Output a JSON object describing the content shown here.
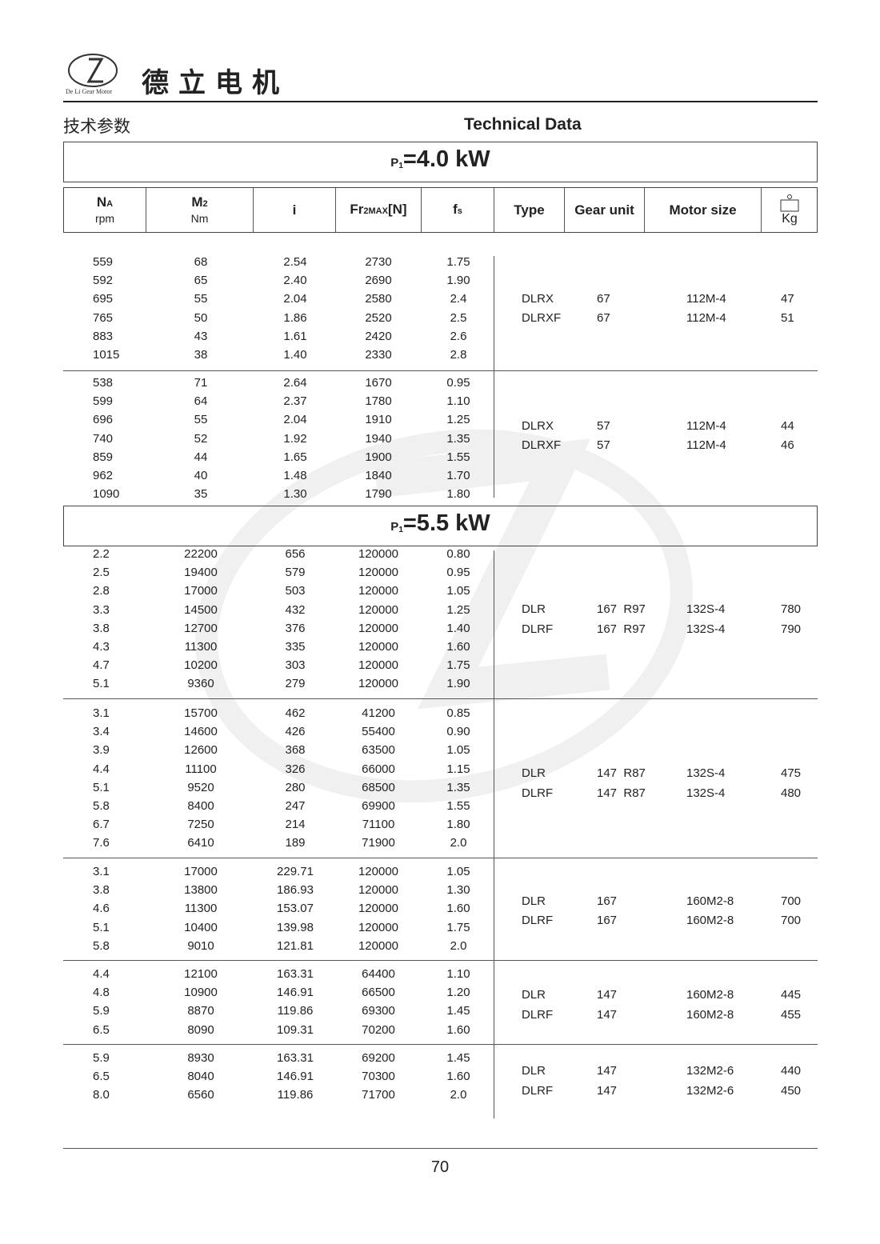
{
  "brand": {
    "name_cn": "德立电机",
    "logo_text": "De Li Gear Motor",
    "logo_chars": "德立"
  },
  "heading": {
    "left": "技术参数",
    "right": "Technical Data"
  },
  "columns": {
    "na": "N",
    "na_sub": "A",
    "na_unit": "rpm",
    "m2": "M",
    "m2_sub": "2",
    "m2_unit": "Nm",
    "i": "i",
    "fr": "Fr",
    "fr_sub": "2MAX",
    "fr_suffix": "[N]",
    "fs": "f",
    "fs_sub": "s",
    "type": "Type",
    "gear_unit": "Gear unit",
    "motor_size": "Motor size",
    "kg": "Kg",
    "kg_icon": "weight-icon"
  },
  "sections": [
    {
      "p_label": "P",
      "p_sub": "1",
      "p_value": "=4.0 kW"
    },
    {
      "p_label": "P",
      "p_sub": "1",
      "p_value": "=5.5 kW"
    }
  ],
  "groups": [
    {
      "rows": [
        [
          "559",
          "68",
          "2.54",
          "2730",
          "1.75"
        ],
        [
          "592",
          "65",
          "2.40",
          "2690",
          "1.90"
        ],
        [
          "695",
          "55",
          "2.04",
          "2580",
          "2.4"
        ],
        [
          "765",
          "50",
          "1.86",
          "2520",
          "2.5"
        ],
        [
          "883",
          "43",
          "1.61",
          "2420",
          "2.6"
        ],
        [
          "1015",
          "38",
          "1.40",
          "2330",
          "2.8"
        ]
      ],
      "side": [
        [
          "DLRX",
          "67",
          "112M-4",
          "47"
        ],
        [
          "DLRXF",
          "67",
          "112M-4",
          "51"
        ]
      ]
    },
    {
      "rows": [
        [
          "538",
          "71",
          "2.64",
          "1670",
          "0.95"
        ],
        [
          "599",
          "64",
          "2.37",
          "1780",
          "1.10"
        ],
        [
          "696",
          "55",
          "2.04",
          "1910",
          "1.25"
        ],
        [
          "740",
          "52",
          "1.92",
          "1940",
          "1.35"
        ],
        [
          "859",
          "44",
          "1.65",
          "1900",
          "1.55"
        ],
        [
          "962",
          "40",
          "1.48",
          "1840",
          "1.70"
        ],
        [
          "1090",
          "35",
          "1.30",
          "1790",
          "1.80"
        ]
      ],
      "side": [
        [
          "DLRX",
          "57",
          "112M-4",
          "44"
        ],
        [
          "DLRXF",
          "57",
          "112M-4",
          "46"
        ]
      ]
    },
    {
      "rows": [
        [
          "2.2",
          "22200",
          "656",
          "120000",
          "0.80"
        ],
        [
          "2.5",
          "19400",
          "579",
          "120000",
          "0.95"
        ],
        [
          "2.8",
          "17000",
          "503",
          "120000",
          "1.05"
        ],
        [
          "3.3",
          "14500",
          "432",
          "120000",
          "1.25"
        ],
        [
          "3.8",
          "12700",
          "376",
          "120000",
          "1.40"
        ],
        [
          "4.3",
          "11300",
          "335",
          "120000",
          "1.60"
        ],
        [
          "4.7",
          "10200",
          "303",
          "120000",
          "1.75"
        ],
        [
          "5.1",
          "9360",
          "279",
          "120000",
          "1.90"
        ]
      ],
      "side": [
        [
          "DLR",
          "167  R97",
          "132S-4",
          "780"
        ],
        [
          "DLRF",
          "167  R97",
          "132S-4",
          "790"
        ]
      ]
    },
    {
      "rows": [
        [
          "3.1",
          "15700",
          "462",
          "41200",
          "0.85"
        ],
        [
          "3.4",
          "14600",
          "426",
          "55400",
          "0.90"
        ],
        [
          "3.9",
          "12600",
          "368",
          "63500",
          "1.05"
        ],
        [
          "4.4",
          "11100",
          "326",
          "66000",
          "1.15"
        ],
        [
          "5.1",
          "9520",
          "280",
          "68500",
          "1.35"
        ],
        [
          "5.8",
          "8400",
          "247",
          "69900",
          "1.55"
        ],
        [
          "6.7",
          "7250",
          "214",
          "71100",
          "1.80"
        ],
        [
          "7.6",
          "6410",
          "189",
          "71900",
          "2.0"
        ]
      ],
      "side": [
        [
          "DLR",
          "147  R87",
          "132S-4",
          "475"
        ],
        [
          "DLRF",
          "147  R87",
          "132S-4",
          "480"
        ]
      ]
    },
    {
      "rows": [
        [
          "3.1",
          "17000",
          "229.71",
          "120000",
          "1.05"
        ],
        [
          "3.8",
          "13800",
          "186.93",
          "120000",
          "1.30"
        ],
        [
          "4.6",
          "11300",
          "153.07",
          "120000",
          "1.60"
        ],
        [
          "5.1",
          "10400",
          "139.98",
          "120000",
          "1.75"
        ],
        [
          "5.8",
          "9010",
          "121.81",
          "120000",
          "2.0"
        ]
      ],
      "side": [
        [
          "DLR",
          "167",
          "160M2-8",
          "700"
        ],
        [
          "DLRF",
          "167",
          "160M2-8",
          "700"
        ]
      ]
    },
    {
      "rows": [
        [
          "4.4",
          "12100",
          "163.31",
          "64400",
          "1.10"
        ],
        [
          "4.8",
          "10900",
          "146.91",
          "66500",
          "1.20"
        ],
        [
          "5.9",
          "8870",
          "119.86",
          "69300",
          "1.45"
        ],
        [
          "6.5",
          "8090",
          "109.31",
          "70200",
          "1.60"
        ]
      ],
      "side": [
        [
          "DLR",
          "147",
          "160M2-8",
          "445"
        ],
        [
          "DLRF",
          "147",
          "160M2-8",
          "455"
        ]
      ]
    },
    {
      "rows": [
        [
          "5.9",
          "8930",
          "163.31",
          "69200",
          "1.45"
        ],
        [
          "6.5",
          "8040",
          "146.91",
          "70300",
          "1.60"
        ],
        [
          "8.0",
          "6560",
          "119.86",
          "71700",
          "2.0"
        ]
      ],
      "side": [
        [
          "DLR",
          "147",
          "132M2-6",
          "440"
        ],
        [
          "DLRF",
          "147",
          "132M2-6",
          "450"
        ]
      ]
    }
  ],
  "footer": {
    "page_number": "70"
  },
  "colors": {
    "text": "#222222",
    "rule": "#555555",
    "watermark": "#e4e4e4"
  }
}
